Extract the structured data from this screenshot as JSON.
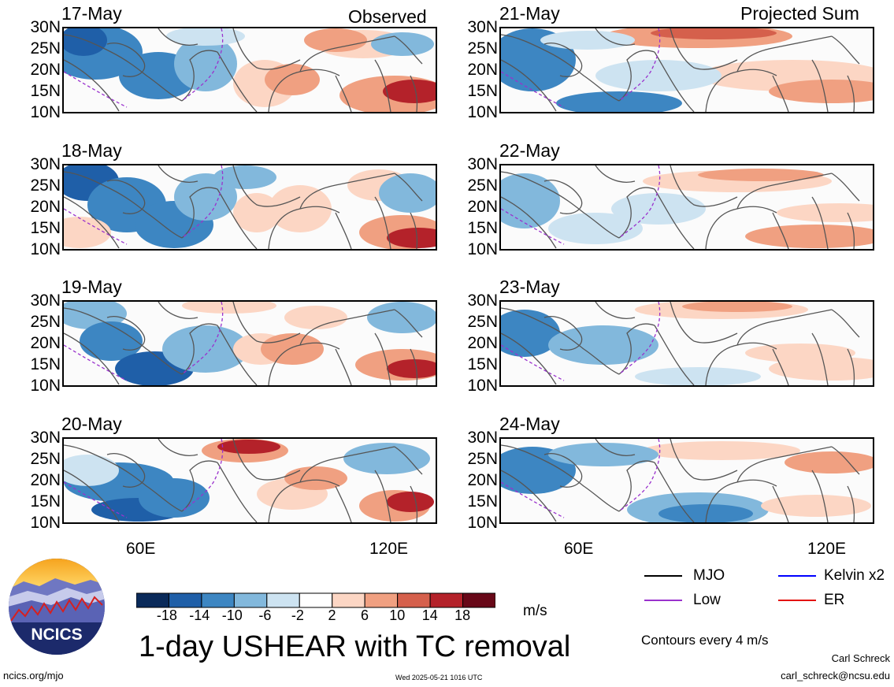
{
  "columns": {
    "left_label": "Observed",
    "right_label": "Projected Sum"
  },
  "panels": {
    "left": [
      "17-May",
      "18-May",
      "19-May",
      "20-May"
    ],
    "right": [
      "21-May",
      "22-May",
      "23-May",
      "24-May"
    ]
  },
  "lat_ticks": [
    "30N",
    "25N",
    "20N",
    "15N",
    "10N"
  ],
  "lon_ticks": [
    "60E",
    "120E"
  ],
  "colorbar": {
    "colors": [
      "#0a2a5a",
      "#1f5fa8",
      "#3d86c2",
      "#82b8dc",
      "#cde3f1",
      "#ffffff",
      "#fcd6c4",
      "#f0a081",
      "#d5604c",
      "#b4222a",
      "#680818"
    ],
    "ticks": [
      "-18",
      "-14",
      "-10",
      "-6",
      "-2",
      "2",
      "6",
      "10",
      "14",
      "18"
    ],
    "units": "m/s"
  },
  "title": "1-day USHEAR with TC removal",
  "legend": {
    "items": [
      {
        "label": "MJO",
        "color": "#000000"
      },
      {
        "label": "Kelvin x2",
        "color": "#0000ff"
      },
      {
        "label": "Low",
        "color": "#9a32cd"
      },
      {
        "label": "ER",
        "color": "#e3120b"
      }
    ],
    "contour_note": "Contours every 4 m/s"
  },
  "credits": {
    "logo_text": "NCICS",
    "url": "ncics.org/mjo",
    "timestamp": "Wed 2025-05-21 1016 UTC",
    "author": "Carl Schreck",
    "email": "carl_schreck@ncsu.edu"
  },
  "map_icon": "shear-field-map"
}
